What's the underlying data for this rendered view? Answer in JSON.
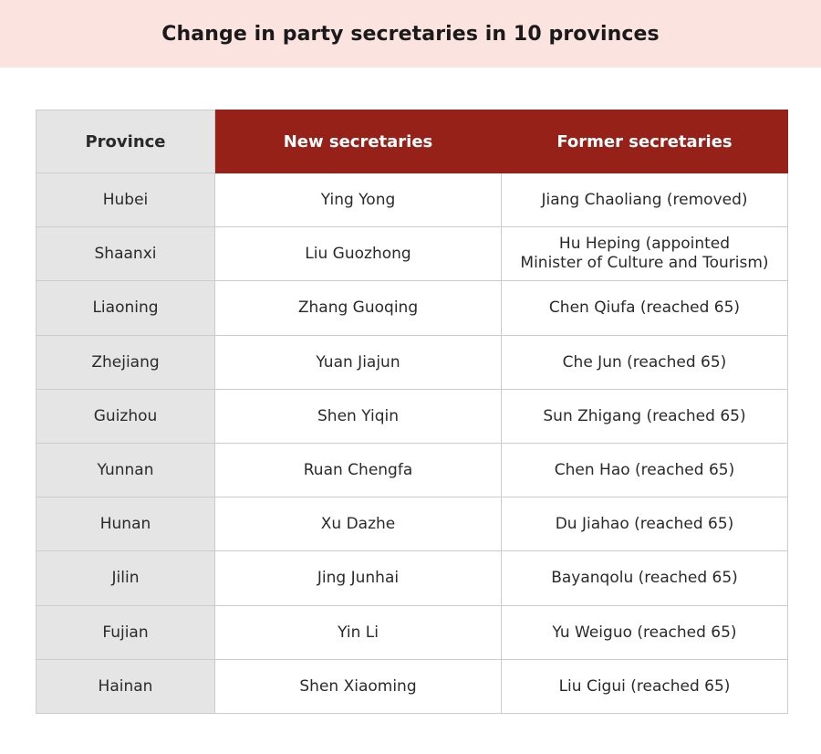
{
  "title": "Change in party secretaries in 10 provinces",
  "table": {
    "headers": {
      "province": "Province",
      "new": "New secretaries",
      "former": "Former secretaries"
    },
    "rows": [
      {
        "province": "Hubei",
        "new": "Ying Yong",
        "former": "Jiang Chaoliang (removed)"
      },
      {
        "province": "Shaanxi",
        "new": "Liu Guozhong",
        "former_line1": "Hu Heping (appointed",
        "former_line2": "Minister of Culture and Tourism)"
      },
      {
        "province": "Liaoning",
        "new": "Zhang Guoqing",
        "former": "Chen Qiufa (reached 65)"
      },
      {
        "province": "Zhejiang",
        "new": "Yuan Jiajun",
        "former": "Che Jun (reached 65)"
      },
      {
        "province": "Guizhou",
        "new": "Shen Yiqin",
        "former": "Sun Zhigang (reached 65)"
      },
      {
        "province": "Yunnan",
        "new": "Ruan Chengfa",
        "former": "Chen Hao (reached 65)"
      },
      {
        "province": "Hunan",
        "new": "Xu Dazhe",
        "former": "Du Jiahao (reached 65)"
      },
      {
        "province": "Jilin",
        "new": "Jing Junhai",
        "former": "Bayanqolu (reached 65)"
      },
      {
        "province": "Fujian",
        "new": "Yin Li",
        "former": "Yu Weiguo (reached 65)"
      },
      {
        "province": "Hainan",
        "new": "Shen Xiaoming",
        "former": "Liu Cigui (reached 65)"
      }
    ]
  },
  "colors": {
    "title_band": "#fbe3e0",
    "header_accent": "#952118",
    "province_column": "#e5e5e5",
    "border": "#cccccc"
  }
}
